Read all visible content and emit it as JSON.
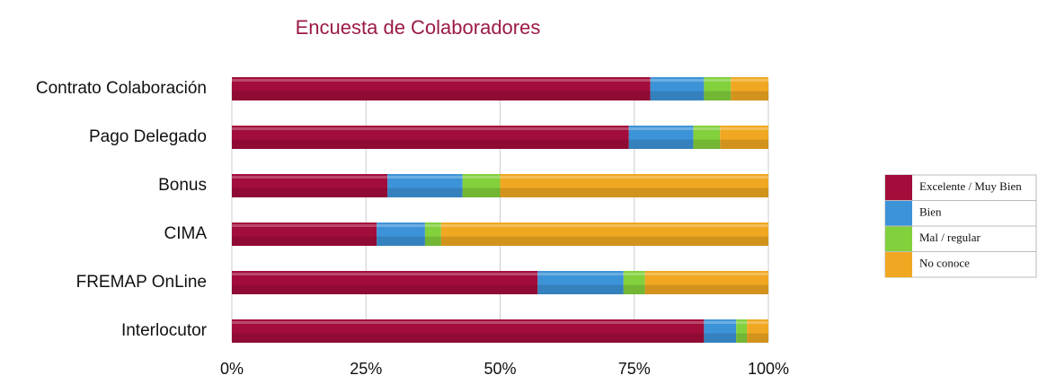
{
  "chart_data": {
    "type": "stacked-bar-horizontal",
    "title": "Encuesta de Colaboradores",
    "categories": [
      "Contrato Colaboración",
      "Pago Delegado",
      "Bonus",
      "CIMA",
      "FREMAP OnLine",
      "Interlocutor"
    ],
    "series": [
      {
        "name": "Excelente / Muy Bien",
        "color": "#a30d3b",
        "values": [
          78,
          74,
          29,
          27,
          57,
          88
        ]
      },
      {
        "name": "Bien",
        "color": "#3d93d8",
        "values": [
          10,
          12,
          14,
          9,
          16,
          6
        ]
      },
      {
        "name": "Mal / regular",
        "color": "#82d03c",
        "values": [
          5,
          5,
          7,
          3,
          4,
          2
        ]
      },
      {
        "name": "No conoce",
        "color": "#f0a822",
        "values": [
          7,
          9,
          50,
          61,
          23,
          4
        ]
      }
    ],
    "xlim": [
      0,
      100
    ],
    "xticks": [
      {
        "value": 0,
        "label": "0%"
      },
      {
        "value": 25,
        "label": "25%"
      },
      {
        "value": 50,
        "label": "50%"
      },
      {
        "value": 75,
        "label": "75%"
      },
      {
        "value": 100,
        "label": "100%"
      }
    ],
    "grid": true,
    "legend": "right"
  }
}
